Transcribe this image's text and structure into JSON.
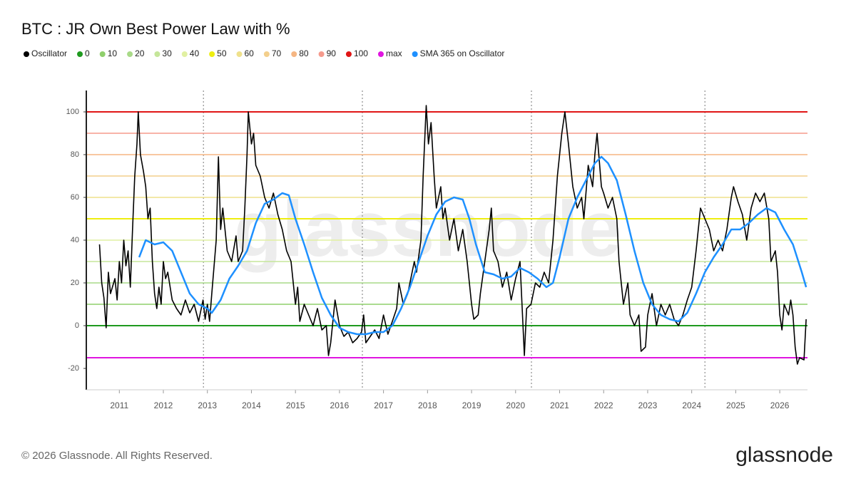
{
  "chart_data": {
    "type": "line",
    "title": "BTC : JR Own Best Power Law with %",
    "watermark": "glassnode",
    "footer": "© 2026 Glassnode. All Rights Reserved.",
    "logo": "glassnode",
    "xlim": [
      2010.25,
      2026.63
    ],
    "xticks": [
      2011,
      2012,
      2013,
      2014,
      2015,
      2016,
      2017,
      2018,
      2019,
      2020,
      2021,
      2022,
      2023,
      2024,
      2025,
      2026
    ],
    "ylim": [
      -30,
      110
    ],
    "yticks": [
      -20,
      0,
      20,
      40,
      60,
      80,
      100
    ],
    "vlines": [
      2012.91,
      2016.52,
      2020.36,
      2024.3
    ],
    "reference_lines": [
      {
        "name": "0",
        "value": 0,
        "color": "#1f9a1f"
      },
      {
        "name": "10",
        "value": 10,
        "color": "#8fcf6c"
      },
      {
        "name": "20",
        "value": 20,
        "color": "#a9da88"
      },
      {
        "name": "30",
        "value": 30,
        "color": "#c5e69a"
      },
      {
        "name": "40",
        "value": 40,
        "color": "#e1f0a2"
      },
      {
        "name": "50",
        "value": 50,
        "color": "#eeee10"
      },
      {
        "name": "60",
        "value": 60,
        "color": "#efe18c"
      },
      {
        "name": "70",
        "value": 70,
        "color": "#f3cf8c"
      },
      {
        "name": "80",
        "value": 80,
        "color": "#f5b683"
      },
      {
        "name": "90",
        "value": 90,
        "color": "#f59a8c"
      },
      {
        "name": "100",
        "value": 100,
        "color": "#e01515"
      },
      {
        "name": "max",
        "value": -15,
        "color": "#e015e0"
      }
    ],
    "series": [
      {
        "name": "Oscillator",
        "color": "#000000",
        "x": [
          2010.55,
          2010.6,
          2010.65,
          2010.7,
          2010.75,
          2010.8,
          2010.9,
          2010.95,
          2011.0,
          2011.05,
          2011.1,
          2011.15,
          2011.2,
          2011.25,
          2011.3,
          2011.35,
          2011.4,
          2011.43,
          2011.48,
          2011.55,
          2011.6,
          2011.65,
          2011.7,
          2011.75,
          2011.8,
          2011.85,
          2011.9,
          2011.95,
          2012.0,
          2012.05,
          2012.1,
          2012.2,
          2012.3,
          2012.4,
          2012.5,
          2012.6,
          2012.7,
          2012.8,
          2012.9,
          2012.95,
          2013.0,
          2013.05,
          2013.1,
          2013.2,
          2013.25,
          2013.3,
          2013.35,
          2013.45,
          2013.55,
          2013.65,
          2013.7,
          2013.8,
          2013.85,
          2013.9,
          2013.93,
          2014.0,
          2014.05,
          2014.1,
          2014.2,
          2014.3,
          2014.4,
          2014.5,
          2014.6,
          2014.7,
          2014.8,
          2014.9,
          2015.0,
          2015.05,
          2015.1,
          2015.2,
          2015.3,
          2015.4,
          2015.5,
          2015.6,
          2015.7,
          2015.75,
          2015.8,
          2015.9,
          2016.0,
          2016.1,
          2016.2,
          2016.3,
          2016.4,
          2016.5,
          2016.55,
          2016.6,
          2016.7,
          2016.8,
          2016.9,
          2017.0,
          2017.1,
          2017.2,
          2017.3,
          2017.35,
          2017.45,
          2017.55,
          2017.7,
          2017.75,
          2017.85,
          2017.9,
          2017.97,
          2018.02,
          2018.08,
          2018.15,
          2018.2,
          2018.3,
          2018.35,
          2018.4,
          2018.5,
          2018.6,
          2018.7,
          2018.8,
          2018.9,
          2019.0,
          2019.05,
          2019.15,
          2019.2,
          2019.3,
          2019.4,
          2019.45,
          2019.5,
          2019.6,
          2019.7,
          2019.8,
          2019.9,
          2020.0,
          2020.1,
          2020.2,
          2020.25,
          2020.35,
          2020.45,
          2020.55,
          2020.65,
          2020.75,
          2020.85,
          2020.95,
          2021.05,
          2021.12,
          2021.2,
          2021.3,
          2021.4,
          2021.5,
          2021.55,
          2021.65,
          2021.75,
          2021.8,
          2021.85,
          2021.95,
          2022.0,
          2022.1,
          2022.2,
          2022.3,
          2022.35,
          2022.45,
          2022.55,
          2022.6,
          2022.7,
          2022.8,
          2022.85,
          2022.95,
          2023.0,
          2023.1,
          2023.2,
          2023.3,
          2023.4,
          2023.5,
          2023.6,
          2023.7,
          2023.8,
          2023.9,
          2024.0,
          2024.1,
          2024.2,
          2024.3,
          2024.4,
          2024.5,
          2024.6,
          2024.7,
          2024.8,
          2024.9,
          2024.95,
          2025.05,
          2025.15,
          2025.25,
          2025.35,
          2025.45,
          2025.55,
          2025.65,
          2025.75,
          2025.8,
          2025.9,
          2025.95,
          2026.0,
          2026.05,
          2026.1,
          2026.2,
          2026.25,
          2026.3,
          2026.35,
          2026.4,
          2026.45,
          2026.55,
          2026.6
        ],
        "values": [
          38,
          20,
          13,
          -1,
          25,
          15,
          22,
          12,
          30,
          20,
          40,
          28,
          35,
          18,
          45,
          70,
          85,
          100,
          80,
          72,
          65,
          50,
          55,
          30,
          15,
          8,
          18,
          10,
          30,
          22,
          25,
          12,
          8,
          5,
          12,
          6,
          10,
          2,
          12,
          3,
          10,
          2,
          15,
          40,
          79,
          45,
          55,
          35,
          30,
          42,
          30,
          35,
          55,
          80,
          100,
          85,
          90,
          75,
          70,
          60,
          55,
          62,
          52,
          45,
          35,
          30,
          10,
          18,
          2,
          10,
          5,
          0,
          8,
          -2,
          0,
          -14,
          -8,
          12,
          0,
          -5,
          -3,
          -8,
          -6,
          -3,
          5,
          -8,
          -5,
          -2,
          -6,
          5,
          -4,
          2,
          8,
          20,
          10,
          15,
          30,
          25,
          40,
          70,
          103,
          85,
          95,
          70,
          55,
          65,
          50,
          55,
          40,
          50,
          35,
          45,
          30,
          10,
          3,
          5,
          15,
          30,
          45,
          55,
          35,
          30,
          18,
          25,
          12,
          22,
          30,
          -14,
          8,
          10,
          20,
          18,
          25,
          20,
          40,
          70,
          90,
          100,
          85,
          65,
          55,
          60,
          50,
          75,
          65,
          80,
          90,
          65,
          62,
          55,
          60,
          50,
          30,
          10,
          20,
          5,
          0,
          5,
          -12,
          -10,
          5,
          15,
          0,
          10,
          5,
          10,
          3,
          0,
          5,
          12,
          18,
          35,
          55,
          50,
          45,
          35,
          40,
          35,
          45,
          60,
          65,
          58,
          52,
          40,
          55,
          62,
          58,
          62,
          50,
          30,
          35,
          25,
          5,
          -2,
          10,
          5,
          12,
          5,
          -10,
          -18,
          -15,
          -16,
          3
        ]
      },
      {
        "name": "SMA 365 on Oscillator",
        "color": "#1e90ff",
        "x": [
          2011.45,
          2011.6,
          2011.8,
          2012.0,
          2012.2,
          2012.4,
          2012.6,
          2012.8,
          2013.0,
          2013.1,
          2013.3,
          2013.5,
          2013.7,
          2013.9,
          2014.1,
          2014.3,
          2014.5,
          2014.7,
          2014.85,
          2015.0,
          2015.2,
          2015.4,
          2015.6,
          2015.8,
          2016.0,
          2016.2,
          2016.4,
          2016.6,
          2016.8,
          2017.0,
          2017.2,
          2017.4,
          2017.6,
          2017.8,
          2018.0,
          2018.2,
          2018.4,
          2018.6,
          2018.8,
          2018.95,
          2019.1,
          2019.3,
          2019.5,
          2019.7,
          2019.9,
          2020.1,
          2020.3,
          2020.5,
          2020.7,
          2020.85,
          2021.0,
          2021.2,
          2021.4,
          2021.6,
          2021.8,
          2021.95,
          2022.1,
          2022.3,
          2022.5,
          2022.7,
          2022.9,
          2023.1,
          2023.3,
          2023.5,
          2023.7,
          2023.9,
          2024.1,
          2024.3,
          2024.5,
          2024.7,
          2024.9,
          2025.1,
          2025.3,
          2025.5,
          2025.7,
          2025.9,
          2026.1,
          2026.3,
          2026.5,
          2026.6
        ],
        "values": [
          32,
          40,
          38,
          39,
          35,
          25,
          15,
          10,
          8,
          6,
          12,
          22,
          28,
          35,
          48,
          57,
          59,
          62,
          61,
          50,
          38,
          25,
          13,
          5,
          -1,
          -3,
          -4,
          -4,
          -3,
          -3,
          0,
          8,
          18,
          30,
          42,
          52,
          58,
          60,
          59,
          50,
          38,
          25,
          24,
          22,
          23,
          27,
          25,
          22,
          18,
          20,
          32,
          50,
          60,
          68,
          76,
          79,
          76,
          68,
          52,
          35,
          20,
          10,
          5,
          3,
          2,
          6,
          15,
          25,
          32,
          38,
          45,
          45,
          48,
          52,
          55,
          53,
          45,
          38,
          25,
          18
        ]
      }
    ]
  }
}
